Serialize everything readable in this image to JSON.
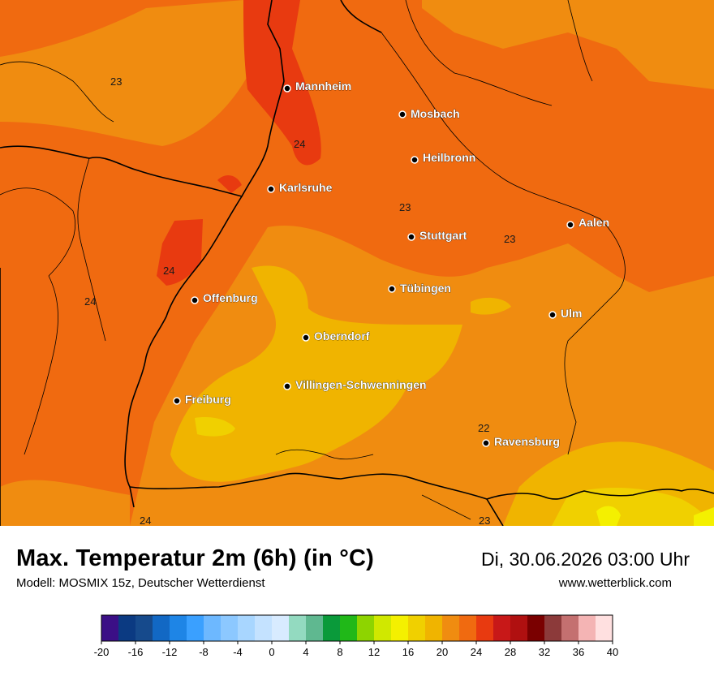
{
  "title": "Max. Temperatur 2m (6h) (in °C)",
  "subtitle": "Modell: MOSMIX 15z, Deutscher Wetterdienst",
  "datetime": "Di, 30.06.2026 03:00 Uhr",
  "website": "www.wetterblick.com",
  "cities": [
    {
      "name": "Mannheim"
    },
    {
      "name": "Mosbach"
    },
    {
      "name": "Heilbronn"
    },
    {
      "name": "Karlsruhe"
    },
    {
      "name": "Stuttgart"
    },
    {
      "name": "Aalen"
    },
    {
      "name": "Tübingen"
    },
    {
      "name": "Offenburg"
    },
    {
      "name": "Oberndorf"
    },
    {
      "name": "Ulm"
    },
    {
      "name": "Villingen-Schwenningen"
    },
    {
      "name": "Freiburg"
    },
    {
      "name": "Ravensburg"
    }
  ],
  "value_labels": [
    "23",
    "24",
    "23",
    "23",
    "24",
    "24",
    "22",
    "23",
    "24"
  ],
  "legend": {
    "ticks": [
      "-20",
      "-16",
      "-12",
      "-8",
      "-4",
      "0",
      "4",
      "8",
      "12",
      "16",
      "20",
      "24",
      "28",
      "32",
      "36",
      "40"
    ],
    "colors": [
      "#3b0f86",
      "#0b3a82",
      "#164a8c",
      "#1268c4",
      "#1e85e6",
      "#3aa0ff",
      "#6db8ff",
      "#8cc8ff",
      "#a8d6ff",
      "#c4e2ff",
      "#d8ebff",
      "#93dac0",
      "#5fb890",
      "#0a9a3a",
      "#20b818",
      "#8ed400",
      "#d0e800",
      "#f4f000",
      "#f0d000",
      "#f0b400",
      "#f08c10",
      "#f06a10",
      "#e83a10",
      "#c81818",
      "#b01010",
      "#7a0000",
      "#8c3a3a",
      "#c47070",
      "#f4b4b4",
      "#ffe0e0"
    ]
  },
  "colors": {
    "deep_orange": "#f06a10",
    "orange": "#f08c10",
    "amber": "#f0b400",
    "yellow": "#f0d000",
    "bright_yellow": "#f4f000",
    "red_orange": "#e83a10",
    "border": "#000000"
  }
}
